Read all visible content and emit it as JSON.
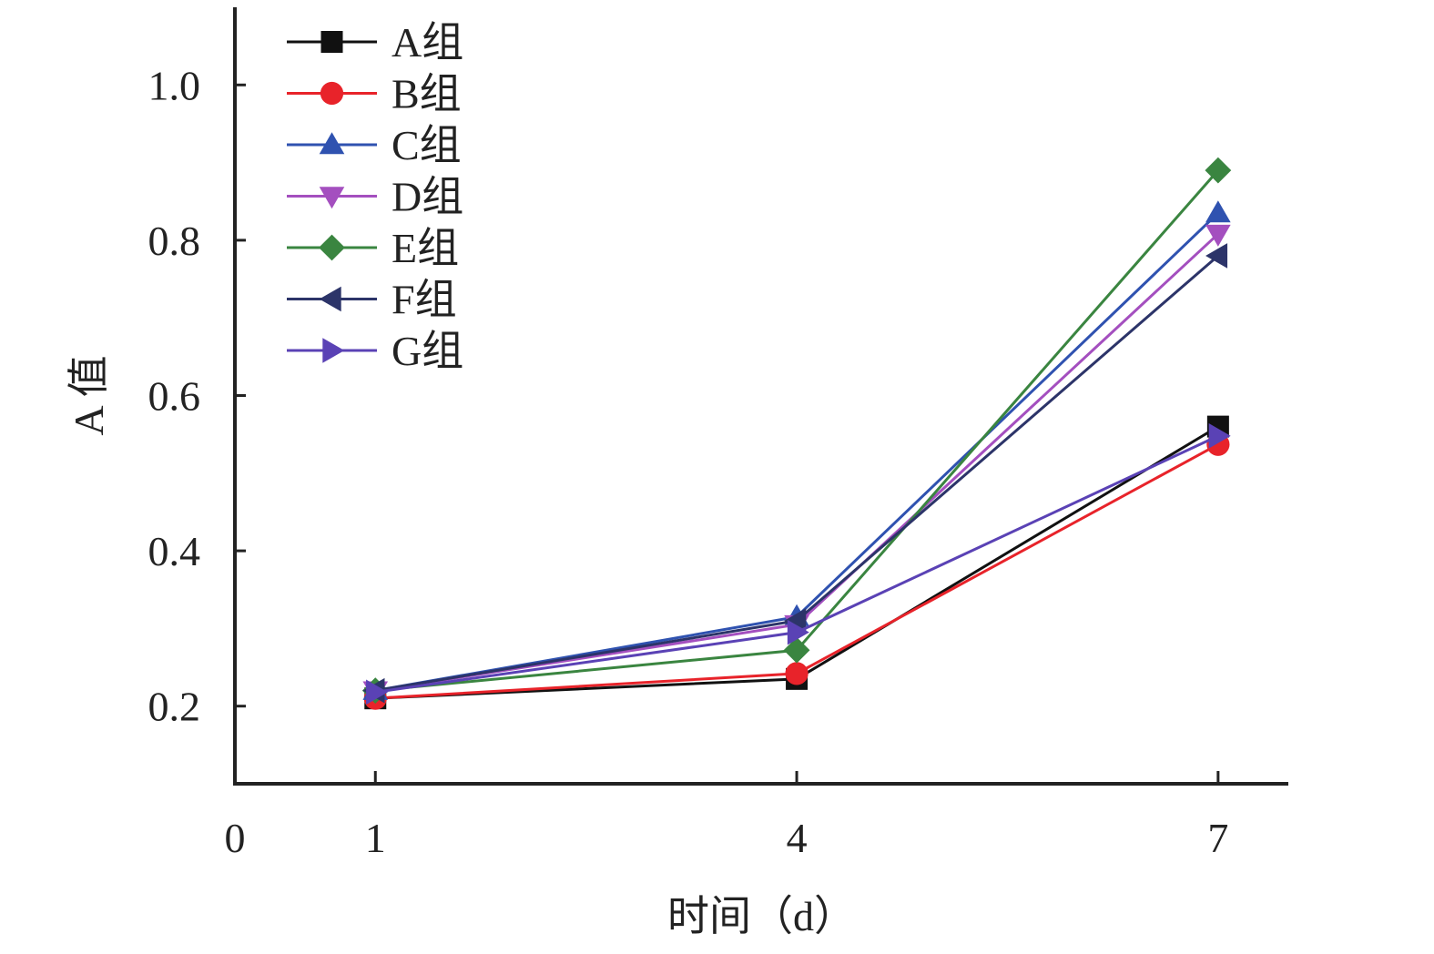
{
  "chart_data": {
    "type": "line",
    "xlabel": "时间（d）",
    "ylabel": "A 值",
    "x": [
      1,
      4,
      7
    ],
    "x_ticks": [
      "0",
      "1",
      "4",
      "7"
    ],
    "y_ticks": [
      "0.2",
      "0.4",
      "0.6",
      "0.8",
      "1.0"
    ],
    "xlim": [
      0,
      7.5
    ],
    "ylim": [
      0.1,
      1.1
    ],
    "grid": false,
    "legend_position": "top-left",
    "series": [
      {
        "name": "A组",
        "values": [
          0.21,
          0.235,
          0.56
        ],
        "color": "#111111",
        "marker": "square"
      },
      {
        "name": "B组",
        "values": [
          0.21,
          0.242,
          0.537
        ],
        "color": "#e8232a",
        "marker": "circle"
      },
      {
        "name": "C组",
        "values": [
          0.22,
          0.315,
          0.835
        ],
        "color": "#2f52b0",
        "marker": "triangle-up"
      },
      {
        "name": "D组",
        "values": [
          0.22,
          0.305,
          0.808
        ],
        "color": "#a44fbf",
        "marker": "triangle-down"
      },
      {
        "name": "E组",
        "values": [
          0.22,
          0.272,
          0.89
        ],
        "color": "#3a8540",
        "marker": "diamond"
      },
      {
        "name": "F组",
        "values": [
          0.22,
          0.31,
          0.78
        ],
        "color": "#2c3469",
        "marker": "triangle-left"
      },
      {
        "name": "G组",
        "values": [
          0.218,
          0.295,
          0.548
        ],
        "color": "#5a42b5",
        "marker": "triangle-right"
      }
    ]
  }
}
